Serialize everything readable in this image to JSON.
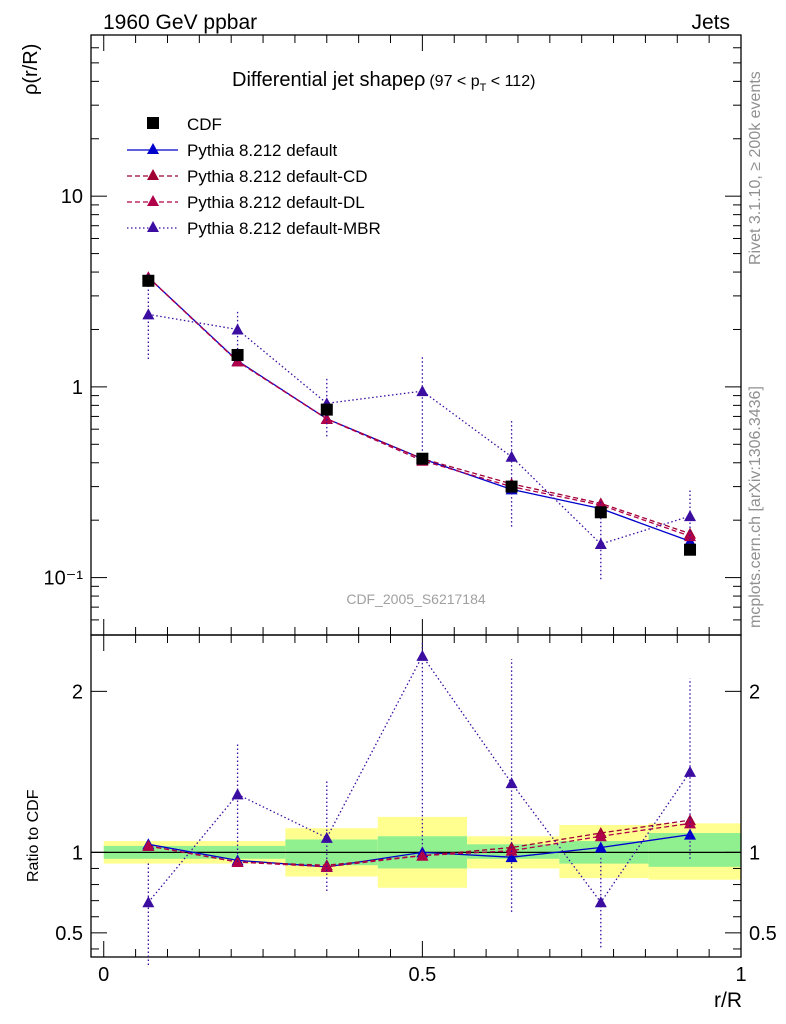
{
  "header": {
    "left": "1960 GeV ppbar",
    "right": "Jets"
  },
  "side_labels": {
    "rivet": "Rivet 3.1.10, ≥ 200k events",
    "mcplots": "mcplots.cern.ch [arXiv:1306.3436]"
  },
  "watermark": "CDF_2005_S6217184",
  "colors": {
    "cdf": "#000000",
    "default": "#0000cc",
    "cd": "#a00033",
    "dl": "#b0004a",
    "mbr": "#3b0da0",
    "band_inner": "#90f090",
    "band_outer": "#ffff90"
  },
  "chart_data": [
    {
      "id": "main",
      "type": "scatter",
      "title": "Differential jet shapeρ",
      "title_suffix": "(97 < p",
      "title_sub": "T",
      "title_end": " < 112)",
      "ylabel": "ρ(r/R)",
      "xlabel": "",
      "yscale": "log",
      "xlim": [
        -0.02,
        1.0
      ],
      "ylim": [
        0.05,
        70
      ],
      "yticks": [
        {
          "value": 10,
          "label": "10"
        },
        {
          "value": 1,
          "label": "1"
        },
        {
          "value": 0.1,
          "label": "10⁻¹"
        }
      ],
      "x": [
        0.07,
        0.21,
        0.35,
        0.5,
        0.64,
        0.78,
        0.92
      ],
      "series": [
        {
          "name": "CDF",
          "key": "cdf",
          "values": [
            3.6,
            1.47,
            0.76,
            0.42,
            0.3,
            0.22,
            0.14
          ]
        },
        {
          "name": "Pythia 8.212 default",
          "key": "default",
          "values": [
            3.75,
            1.37,
            0.68,
            0.42,
            0.29,
            0.23,
            0.155
          ],
          "errors": [
            0,
            0,
            0,
            0,
            0,
            0,
            0
          ]
        },
        {
          "name": "Pythia 8.212 default-CD",
          "key": "cd",
          "values": [
            3.75,
            1.36,
            0.68,
            0.42,
            0.31,
            0.245,
            0.17
          ]
        },
        {
          "name": "Pythia 8.212 default-DL",
          "key": "dl",
          "values": [
            3.75,
            1.36,
            0.68,
            0.41,
            0.3,
            0.24,
            0.165
          ]
        },
        {
          "name": "Pythia 8.212 default-MBR",
          "key": "mbr",
          "values": [
            2.4,
            2.0,
            0.82,
            0.95,
            0.43,
            0.15,
            0.21
          ],
          "err_low": [
            1.4,
            1.36,
            0.55,
            0.42,
            0.185,
            0.098,
            0.15
          ],
          "err_high": [
            3.9,
            2.5,
            1.12,
            1.45,
            0.68,
            0.25,
            0.29
          ]
        }
      ]
    },
    {
      "id": "ratio",
      "type": "scatter",
      "ylabel": "Ratio to CDF",
      "xlabel": "r/R",
      "xlim": [
        -0.02,
        1.0
      ],
      "ylim": [
        0.35,
        2.35
      ],
      "yticks": [
        {
          "value": 2,
          "label": "2"
        },
        {
          "value": 1,
          "label": "1"
        },
        {
          "value": 0.5,
          "label": "0.5"
        }
      ],
      "xticks": [
        {
          "value": 0,
          "label": "0"
        },
        {
          "value": 0.5,
          "label": "0.5"
        },
        {
          "value": 1,
          "label": "1"
        }
      ],
      "bins": [
        0.0,
        0.14,
        0.285,
        0.43,
        0.57,
        0.715,
        0.855,
        1.0
      ],
      "band_inner": [
        [
          0.96,
          1.04
        ],
        [
          0.96,
          1.04
        ],
        [
          0.92,
          1.08
        ],
        [
          0.9,
          1.1
        ],
        [
          0.96,
          1.05
        ],
        [
          0.93,
          1.07
        ],
        [
          0.91,
          1.12
        ]
      ],
      "band_outer": [
        [
          0.93,
          1.07
        ],
        [
          0.93,
          1.07
        ],
        [
          0.85,
          1.15
        ],
        [
          0.78,
          1.22
        ],
        [
          0.9,
          1.1
        ],
        [
          0.84,
          1.17
        ],
        [
          0.83,
          1.18
        ]
      ],
      "x": [
        0.07,
        0.21,
        0.35,
        0.5,
        0.64,
        0.78,
        0.92
      ],
      "series": [
        {
          "name": "Pythia 8.212 default",
          "key": "default",
          "values": [
            1.05,
            0.95,
            0.91,
            1.0,
            0.97,
            1.03,
            1.11
          ]
        },
        {
          "name": "Pythia 8.212 default-CD",
          "key": "cd",
          "values": [
            1.04,
            0.94,
            0.92,
            0.98,
            1.03,
            1.12,
            1.2
          ]
        },
        {
          "name": "Pythia 8.212 default-DL",
          "key": "dl",
          "values": [
            1.04,
            0.94,
            0.91,
            0.98,
            1.01,
            1.1,
            1.18
          ]
        },
        {
          "name": "Pythia 8.212 default-MBR",
          "key": "mbr",
          "values": [
            0.69,
            1.36,
            1.09,
            2.22,
            1.43,
            0.69,
            1.5
          ],
          "err_low": [
            0.3,
            0.94,
            0.76,
            1.0,
            0.63,
            0.41,
            0.96
          ],
          "err_high": [
            0.94,
            1.67,
            1.45,
            2.3,
            2.2,
            0.97,
            2.08
          ]
        }
      ]
    }
  ]
}
